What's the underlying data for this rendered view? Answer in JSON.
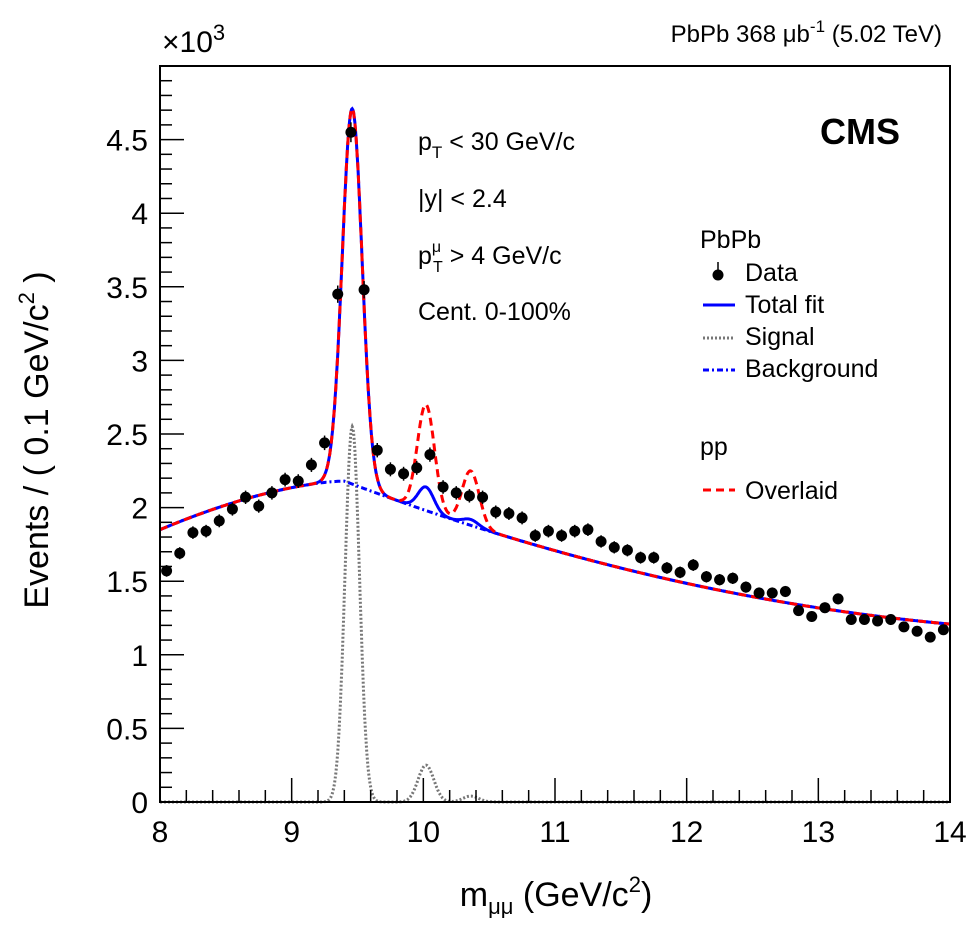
{
  "chart_data": {
    "type": "scatter",
    "header": {
      "system": "PbPb",
      "lumi_value": "368",
      "lumi_unit": "μb",
      "lumi_exp": "-1",
      "energy": "(5.02 TeV)"
    },
    "experiment": "CMS",
    "exponent": {
      "base": "×10",
      "power": "3"
    },
    "xlabel": {
      "pre": "m",
      "sub": "μμ",
      "unit": "(GeV/c",
      "exp": "2",
      "close": ")"
    },
    "ylabel": {
      "pre": "Events / ( 0.1 GeV/c",
      "exp": "2",
      "close": " )"
    },
    "xlim": [
      8,
      14
    ],
    "ylim": [
      0,
      5
    ],
    "x_ticks": [
      "8",
      "9",
      "10",
      "11",
      "12",
      "13",
      "14"
    ],
    "y_ticks": [
      "0",
      "0.5",
      "1",
      "1.5",
      "2",
      "2.5",
      "3",
      "3.5",
      "4",
      "4.5"
    ],
    "annotations": {
      "pt": {
        "var": "p",
        "sub": "T",
        "rest": " < 30 GeV/c"
      },
      "y": {
        "text": "|y| < 2.4"
      },
      "ptmu": {
        "var": "p",
        "sup": "μ",
        "sub": "T",
        "rest": " > 4 GeV/c"
      },
      "cent": {
        "text": "Cent. 0-100%"
      }
    },
    "legend": {
      "title": "PbPb",
      "data": "Data",
      "total": "Total fit",
      "signal": "Signal",
      "background": "Background",
      "pp_title": "pp",
      "overlaid": "Overlaid"
    },
    "colors": {
      "data": "#000000",
      "total": "#0000ff",
      "signal": "#777777",
      "background": "#0000ff",
      "overlaid": "#ff0000"
    },
    "series": {
      "data": {
        "x": [
          8.05,
          8.15,
          8.25,
          8.35,
          8.45,
          8.55,
          8.65,
          8.75,
          8.85,
          8.95,
          9.05,
          9.15,
          9.25,
          9.35,
          9.45,
          9.55,
          9.65,
          9.75,
          9.85,
          9.95,
          10.05,
          10.15,
          10.25,
          10.35,
          10.45,
          10.55,
          10.65,
          10.75,
          10.85,
          10.95,
          11.05,
          11.15,
          11.25,
          11.35,
          11.45,
          11.55,
          11.65,
          11.75,
          11.85,
          11.95,
          12.05,
          12.15,
          12.25,
          12.35,
          12.45,
          12.55,
          12.65,
          12.75,
          12.85,
          12.95,
          13.05,
          13.15,
          13.25,
          13.35,
          13.45,
          13.55,
          13.65,
          13.75,
          13.85,
          13.95
        ],
        "y": [
          1.57,
          1.69,
          1.83,
          1.84,
          1.91,
          1.99,
          2.07,
          2.01,
          2.1,
          2.19,
          2.18,
          2.29,
          2.44,
          3.45,
          4.55,
          3.48,
          2.39,
          2.26,
          2.23,
          2.27,
          2.36,
          2.14,
          2.1,
          2.08,
          2.07,
          1.97,
          1.96,
          1.93,
          1.81,
          1.84,
          1.81,
          1.84,
          1.85,
          1.77,
          1.73,
          1.71,
          1.66,
          1.66,
          1.59,
          1.56,
          1.61,
          1.53,
          1.51,
          1.52,
          1.46,
          1.42,
          1.42,
          1.43,
          1.3,
          1.26,
          1.32,
          1.38,
          1.24,
          1.24,
          1.23,
          1.24,
          1.19,
          1.16,
          1.12,
          1.17
        ]
      }
    }
  }
}
